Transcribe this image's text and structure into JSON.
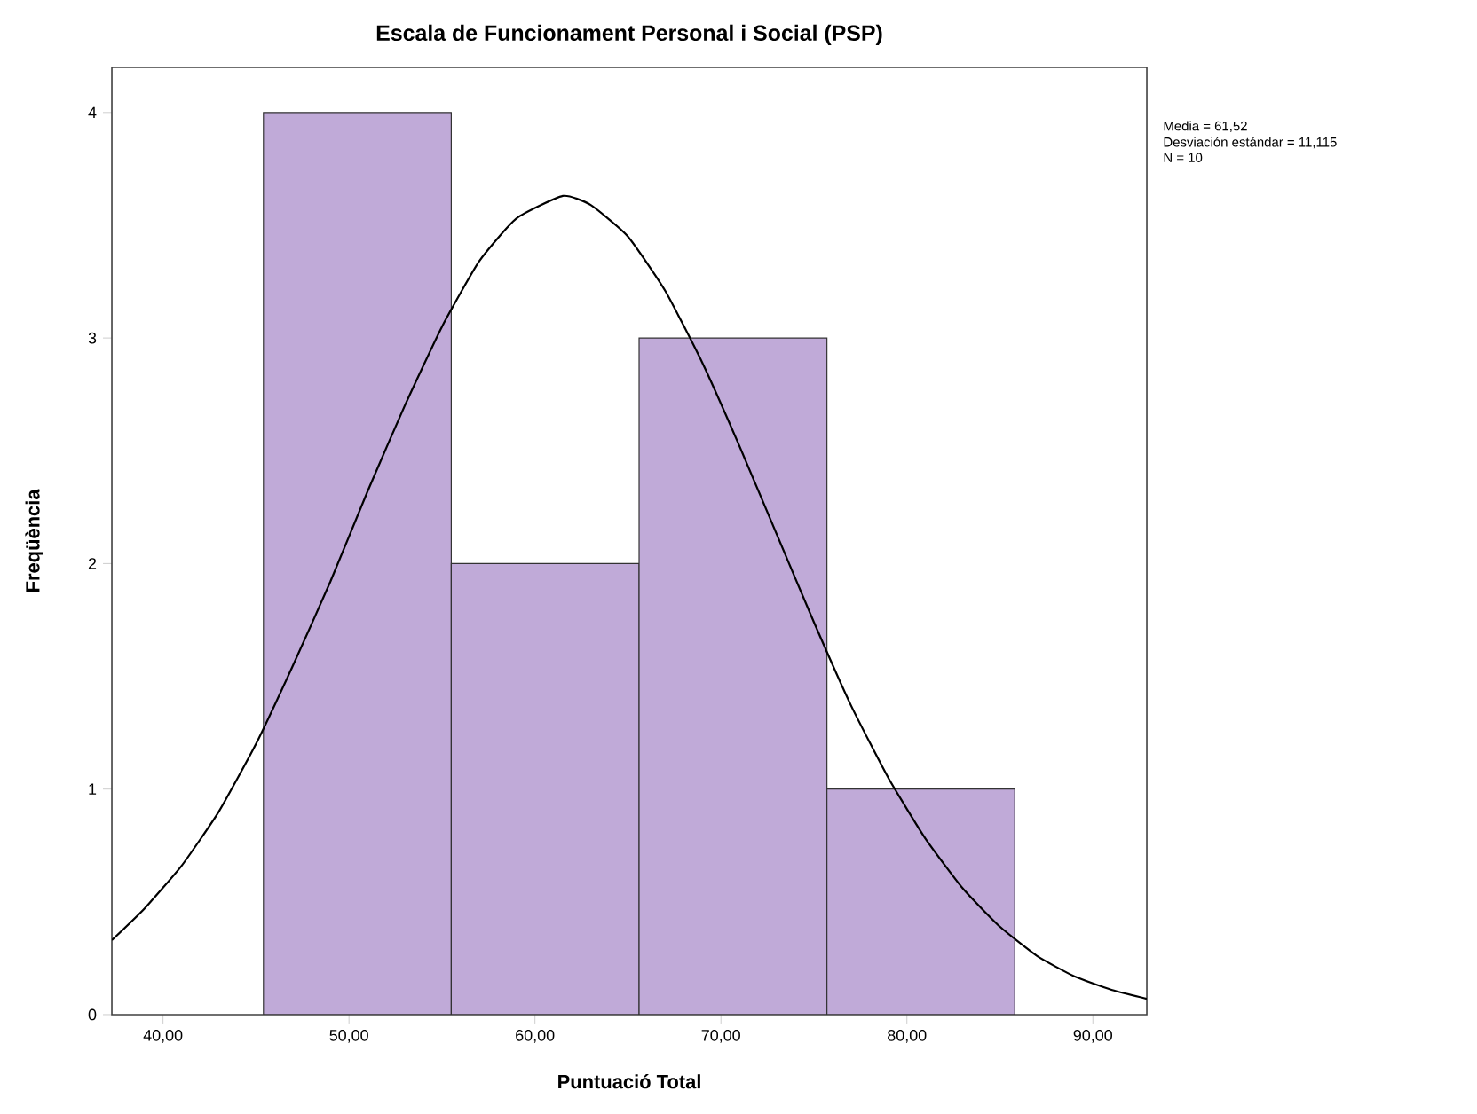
{
  "chart_data": {
    "type": "histogram",
    "title": "Escala de Funcionament Personal i Social (PSP)",
    "xlabel": "Puntuació Total",
    "ylabel": "Freqüència",
    "bins": [
      45.4,
      55.5,
      65.6,
      75.7,
      85.8
    ],
    "values": [
      4,
      2,
      3,
      1
    ],
    "color": "#c0aad8",
    "series": [
      {
        "type": "line",
        "color": "#000000",
        "x": [
          37.25,
          39,
          41,
          43,
          45,
          47,
          49,
          51,
          53,
          55,
          57,
          59,
          61.5,
          63,
          65,
          67,
          69,
          71,
          73,
          75,
          77,
          79,
          81,
          83,
          85,
          87,
          89,
          91,
          92.9
        ],
        "values": [
          0.33,
          0.47,
          0.66,
          0.9,
          1.2,
          1.55,
          1.92,
          2.32,
          2.7,
          3.05,
          3.34,
          3.53,
          3.63,
          3.59,
          3.45,
          3.21,
          2.89,
          2.52,
          2.13,
          1.74,
          1.37,
          1.05,
          0.78,
          0.56,
          0.39,
          0.26,
          0.17,
          0.11,
          0.07
        ]
      }
    ],
    "xlim": [
      37.25,
      92.9
    ],
    "ylim": [
      0,
      4.2
    ],
    "xticks": [
      {
        "value": 40,
        "label": "40,00"
      },
      {
        "value": 50,
        "label": "50,00"
      },
      {
        "value": 60,
        "label": "60,00"
      },
      {
        "value": 70,
        "label": "70,00"
      },
      {
        "value": 80,
        "label": "80,00"
      },
      {
        "value": 90,
        "label": "90,00"
      }
    ],
    "yticks": [
      0,
      1,
      2,
      3,
      4
    ],
    "annotations": [
      "Media = 61,52",
      "Desviación estándar = 11,115",
      "N = 10"
    ]
  }
}
